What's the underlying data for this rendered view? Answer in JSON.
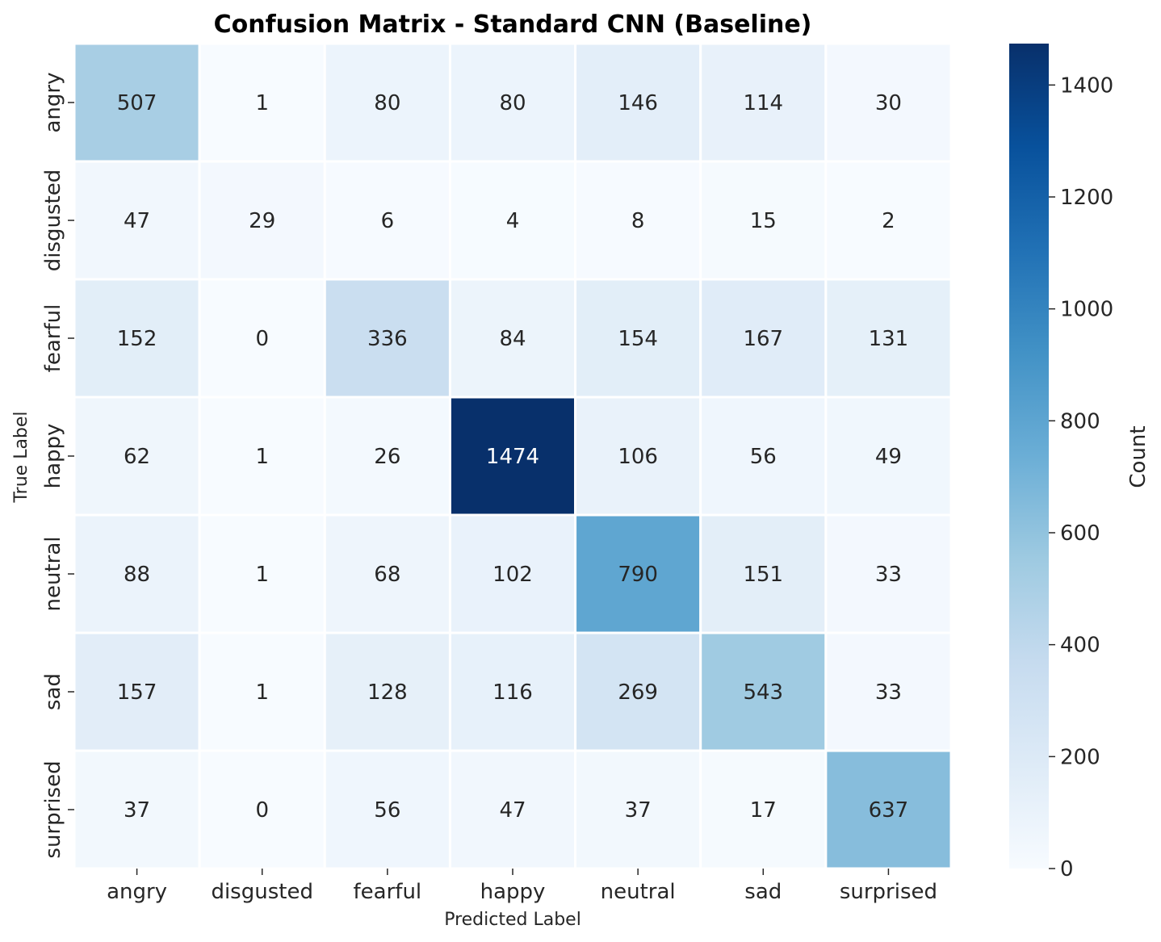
{
  "chart_data": {
    "type": "heatmap",
    "title": "Confusion Matrix - Standard CNN (Baseline)",
    "xlabel": "Predicted Label",
    "ylabel": "True Label",
    "x_categories": [
      "angry",
      "disgusted",
      "fearful",
      "happy",
      "neutral",
      "sad",
      "surprised"
    ],
    "y_categories": [
      "angry",
      "disgusted",
      "fearful",
      "happy",
      "neutral",
      "sad",
      "surprised"
    ],
    "values": [
      [
        507,
        1,
        80,
        80,
        146,
        114,
        30
      ],
      [
        47,
        29,
        6,
        4,
        8,
        15,
        2
      ],
      [
        152,
        0,
        336,
        84,
        154,
        167,
        131
      ],
      [
        62,
        1,
        26,
        1474,
        106,
        56,
        49
      ],
      [
        88,
        1,
        68,
        102,
        790,
        151,
        33
      ],
      [
        157,
        1,
        128,
        116,
        269,
        543,
        33
      ],
      [
        37,
        0,
        56,
        47,
        37,
        17,
        637
      ]
    ],
    "colorbar": {
      "label": "Count",
      "ticks": [
        0,
        200,
        400,
        600,
        800,
        1000,
        1200,
        1400
      ],
      "range": [
        0,
        1474
      ],
      "colormap": "Blues"
    },
    "colors": {
      "cell_border": "#ffffff",
      "text_dark": "#262626",
      "text_light": "#ffffff"
    }
  }
}
